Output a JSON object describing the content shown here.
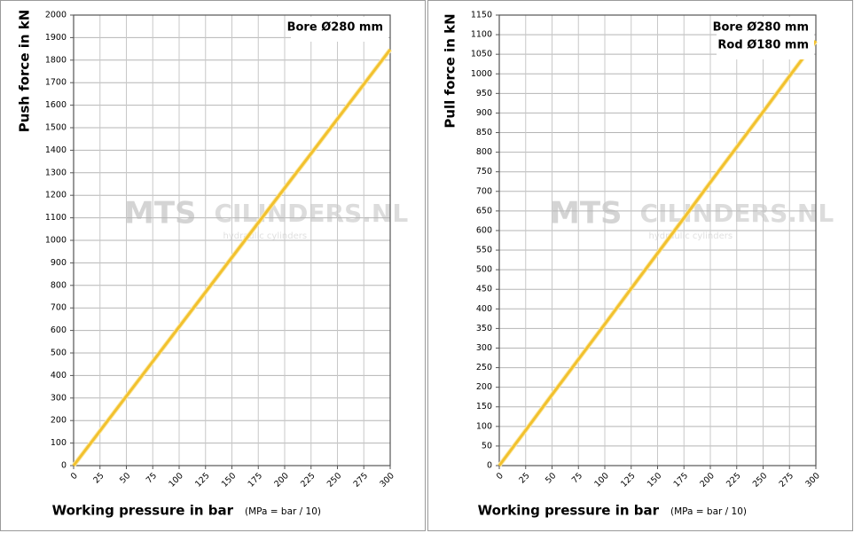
{
  "chart_data": [
    {
      "type": "line",
      "y_label": "Push force in kN",
      "x_label": "Working pressure in bar",
      "x_note": "(MPa = bar / 10)",
      "annotations": [
        "Bore Ø280 mm"
      ],
      "watermark": [
        "MTS",
        "CILINDERS.NL",
        "hydraulic cylinders"
      ],
      "x": [
        0,
        25,
        50,
        75,
        100,
        125,
        150,
        175,
        200,
        225,
        250,
        275,
        300
      ],
      "values": [
        0,
        154,
        308,
        462,
        616,
        770,
        924,
        1078,
        1232,
        1385,
        1539,
        1693,
        1847
      ],
      "color": "#f2c12e",
      "grid": true,
      "xlim": [
        0,
        300
      ],
      "xticks": [
        0,
        25,
        50,
        75,
        100,
        125,
        150,
        175,
        200,
        225,
        250,
        275,
        300
      ],
      "ylim": [
        0,
        2000
      ],
      "yticks": [
        0,
        100,
        200,
        300,
        400,
        500,
        600,
        700,
        800,
        900,
        1000,
        1100,
        1200,
        1300,
        1400,
        1500,
        1600,
        1700,
        1800,
        1900,
        2000
      ]
    },
    {
      "type": "line",
      "y_label": "Pull force in kN",
      "x_label": "Working pressure in bar",
      "x_note": "(MPa = bar / 10)",
      "annotations": [
        "Bore Ø280 mm",
        "Rod  Ø180 mm"
      ],
      "watermark": [
        "MTS",
        "CILINDERS.NL",
        "hydraulic cylinders"
      ],
      "x": [
        0,
        25,
        50,
        75,
        100,
        125,
        150,
        175,
        200,
        225,
        250,
        275,
        300
      ],
      "values": [
        0,
        90,
        181,
        271,
        361,
        452,
        542,
        632,
        723,
        813,
        903,
        994,
        1084
      ],
      "color": "#f2c12e",
      "grid": true,
      "xlim": [
        0,
        300
      ],
      "xticks": [
        0,
        25,
        50,
        75,
        100,
        125,
        150,
        175,
        200,
        225,
        250,
        275,
        300
      ],
      "ylim": [
        0,
        1150
      ],
      "yticks": [
        0,
        50,
        100,
        150,
        200,
        250,
        300,
        350,
        400,
        450,
        500,
        550,
        600,
        650,
        700,
        750,
        800,
        850,
        900,
        950,
        1000,
        1050,
        1100,
        1150
      ]
    }
  ]
}
